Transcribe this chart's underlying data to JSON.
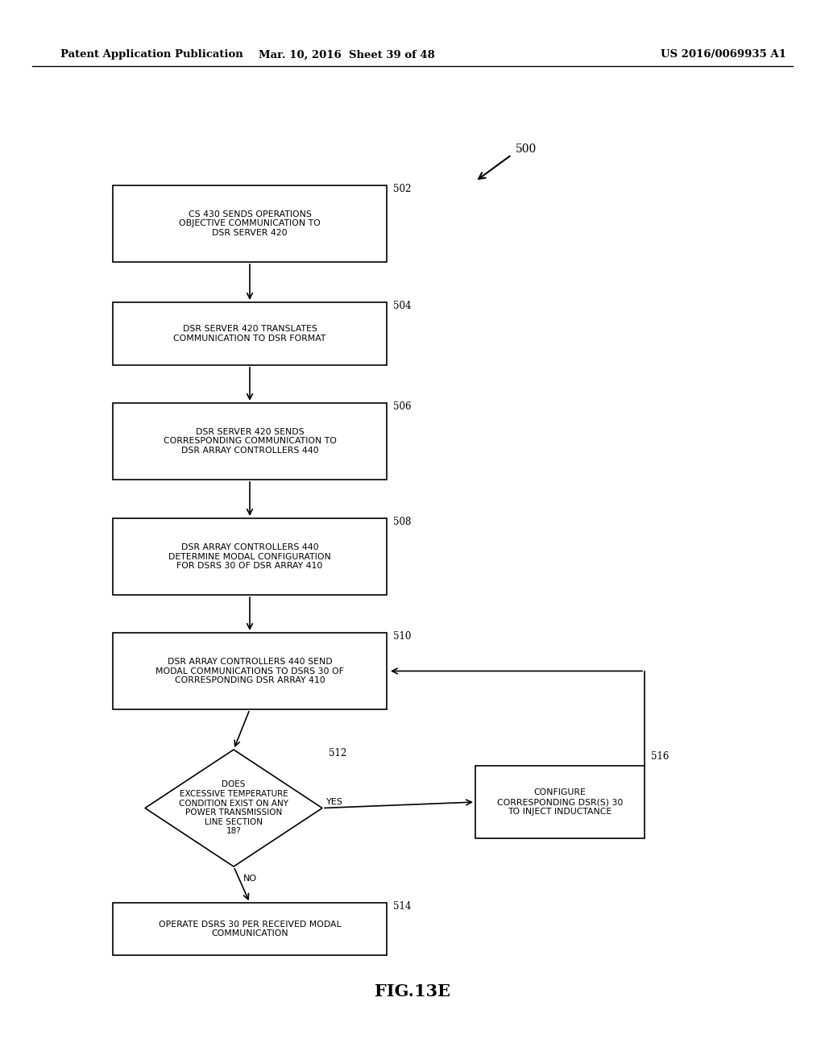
{
  "header_left": "Patent Application Publication",
  "header_mid": "Mar. 10, 2016  Sheet 39 of 48",
  "header_right": "US 2016/0069935 A1",
  "fig_label": "FIG.13E",
  "diagram_label": "500",
  "box_labels": {
    "502": "CS 430 SENDS OPERATIONS\nOBJECTIVE COMMUNICATION TO\nDSR SERVER 420",
    "504": "DSR SERVER 420 TRANSLATES\nCOMMUNICATION TO DSR FORMAT",
    "506": "DSR SERVER 420 SENDS\nCORRESPONDING COMMUNICATION TO\nDSR ARRAY CONTROLLERS 440",
    "508": "DSR ARRAY CONTROLLERS 440\nDETERMINE MODAL CONFIGURATION\nFOR DSRS 30 OF DSR ARRAY 410",
    "510": "DSR ARRAY CONTROLLERS 440 SEND\nMODAL COMMUNICATIONS TO DSRS 30 OF\nCORRESPONDING DSR ARRAY 410",
    "512": "DOES\nEXCESSIVE TEMPERATURE\nCONDITION EXIST ON ANY\nPOWER TRANSMISSION\nLINE SECTION\n18?",
    "514": "OPERATE DSRS 30 PER RECEIVED MODAL\nCOMMUNICATION",
    "516": "CONFIGURE\nCORRESPONDING DSR(S) 30\nTO INJECT INDUCTANCE"
  },
  "background_color": "#ffffff",
  "fontsize": 7.8,
  "header_fontsize": 9.5,
  "label_fontsize": 8.5,
  "figlabel_fontsize": 15
}
